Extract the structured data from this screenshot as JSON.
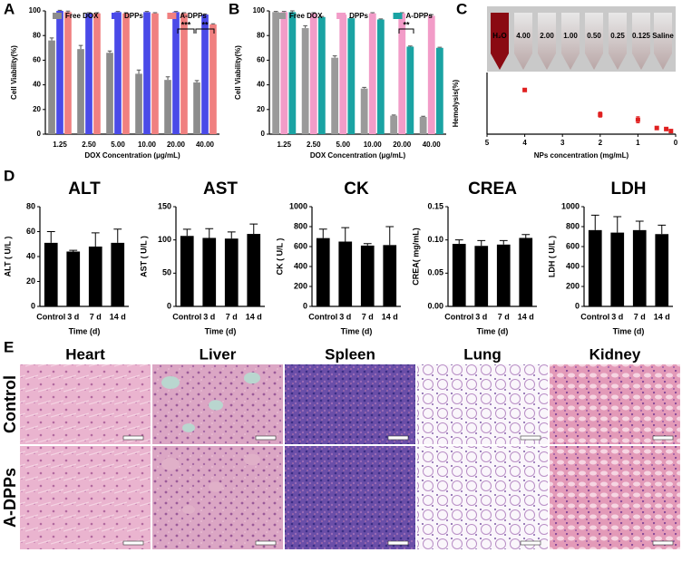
{
  "panel_labels": [
    "A",
    "B",
    "C",
    "D",
    "E"
  ],
  "chart_data": [
    {
      "type": "bar",
      "categories": [
        "1.25",
        "2.50",
        "5.00",
        "10.00",
        "20.00",
        "40.00"
      ],
      "xlabel": "DOX Concentration (μg/mL)",
      "ylabel": "Cell Viability(%)",
      "ylim": [
        0,
        100
      ],
      "yticks": [
        0,
        20,
        40,
        60,
        80,
        100
      ],
      "series": [
        {
          "name": "Free DOX",
          "color": "#8c8c8c",
          "values": [
            76,
            69,
            66,
            49,
            44,
            42
          ],
          "errors": [
            2,
            3,
            1.5,
            3,
            2.5,
            1.5
          ]
        },
        {
          "name": "DPPs",
          "color": "#4a4ae8",
          "values": [
            100,
            98,
            99,
            99,
            99,
            97
          ],
          "errors": [
            0.5,
            0.5,
            0.5,
            0.5,
            0.5,
            0.5
          ]
        },
        {
          "name": "A-DPPs",
          "color": "#f08080",
          "values": [
            99,
            98,
            98,
            98,
            98,
            89
          ],
          "errors": [
            0.8,
            0.5,
            0.5,
            0.5,
            0.5,
            0.5
          ]
        }
      ],
      "annotations": [
        "***",
        "**"
      ]
    },
    {
      "type": "bar",
      "categories": [
        "1.25",
        "2.50",
        "5.00",
        "10.00",
        "20.00",
        "40.00"
      ],
      "xlabel": "DOX Concentration (μg/mL)",
      "ylabel": "Cell Viability(%)",
      "ylim": [
        0,
        100
      ],
      "yticks": [
        0,
        20,
        40,
        60,
        80,
        100
      ],
      "series": [
        {
          "name": "Free DOX",
          "color": "#9a9a9a",
          "values": [
            99,
            86,
            62,
            37,
            15,
            14
          ],
          "errors": [
            0.5,
            2,
            1.5,
            1,
            0.5,
            0.5
          ]
        },
        {
          "name": "DPPs",
          "color": "#f29cc8",
          "values": [
            99,
            98,
            97,
            98,
            98,
            96
          ],
          "errors": [
            0.5,
            0.5,
            0.5,
            0.5,
            0.5,
            1
          ]
        },
        {
          "name": "A-DPPs",
          "color": "#1aa3a3",
          "values": [
            99,
            95,
            94,
            93,
            71,
            70
          ],
          "errors": [
            1,
            0.5,
            0.5,
            0.5,
            0.5,
            0.5
          ]
        }
      ],
      "annotations": [
        "**"
      ]
    },
    {
      "type": "scatter",
      "xlabel": "NPs concentration (mg/mL)",
      "ylabel": "Hemolysis(%)",
      "xlim": [
        5,
        0
      ],
      "xticks": [
        5,
        4,
        3,
        2,
        1,
        0
      ],
      "ylim": [
        0,
        6
      ],
      "color": "#e02020",
      "x": [
        4,
        2,
        1,
        0.5,
        0.25,
        0.125
      ],
      "y": [
        4.3,
        1.9,
        1.4,
        0.6,
        0.5,
        0.3
      ],
      "errors": [
        0.15,
        0.25,
        0.3,
        0.1,
        0.15,
        0.1
      ],
      "image_labels": [
        "H₂O",
        "4.00",
        "2.00",
        "1.00",
        "0.50",
        "0.25",
        "0.125",
        "Saline"
      ]
    },
    {
      "type": "bar",
      "title": "ALT",
      "categories": [
        "Control",
        "3 d",
        "7 d",
        "14 d"
      ],
      "xlabel": "Time (d)",
      "ylabel": "ALT ( U/L )",
      "color": "#000000",
      "ylim": [
        0,
        80
      ],
      "yticks": [
        0,
        20,
        40,
        60,
        80
      ],
      "values": [
        51,
        44,
        48,
        51
      ],
      "errors": [
        9,
        1,
        11,
        11
      ]
    },
    {
      "type": "bar",
      "title": "AST",
      "categories": [
        "Control",
        "3 d",
        "7 d",
        "14 d"
      ],
      "xlabel": "Time (d)",
      "ylabel": "AST ( U/L )",
      "color": "#000000",
      "ylim": [
        0,
        150
      ],
      "yticks": [
        0,
        50,
        100,
        150
      ],
      "values": [
        106,
        103,
        102,
        109
      ],
      "errors": [
        10,
        14,
        10,
        15
      ]
    },
    {
      "type": "bar",
      "title": "CK",
      "categories": [
        "Control",
        "3 d",
        "7 d",
        "14 d"
      ],
      "xlabel": "Time (d)",
      "ylabel": "CK ( U/L )",
      "color": "#000000",
      "ylim": [
        0,
        1000
      ],
      "yticks": [
        0,
        200,
        400,
        600,
        800,
        1000
      ],
      "values": [
        685,
        650,
        610,
        615
      ],
      "errors": [
        90,
        140,
        20,
        185
      ]
    },
    {
      "type": "bar",
      "title": "CREA",
      "categories": [
        "Control",
        "3 d",
        "7 d",
        "14 d"
      ],
      "xlabel": "Time (d)",
      "ylabel": "CREA( mg/mL)",
      "color": "#000000",
      "ylim": [
        0,
        0.15
      ],
      "yticks": [
        {
          "value": 0,
          "label": "0.00"
        },
        {
          "value": 0.05,
          "label": "0.05"
        },
        {
          "value": 0.1,
          "label": "0.10"
        },
        {
          "value": 0.15,
          "label": "0.15"
        }
      ],
      "values": [
        0.094,
        0.091,
        0.093,
        0.103
      ],
      "errors": [
        0.006,
        0.008,
        0.006,
        0.005
      ]
    },
    {
      "type": "bar",
      "title": "LDH",
      "categories": [
        "Control",
        "3 d",
        "7 d",
        "14 d"
      ],
      "xlabel": "Time (d)",
      "ylabel": "LDH ( U/L )",
      "color": "#000000",
      "ylim": [
        0,
        1000
      ],
      "yticks": [
        0,
        200,
        400,
        600,
        800,
        1000
      ],
      "values": [
        765,
        740,
        765,
        725
      ],
      "errors": [
        150,
        160,
        90,
        90
      ]
    }
  ],
  "histology": {
    "columns": [
      "Heart",
      "Liver",
      "Spleen",
      "Lung",
      "Kidney"
    ],
    "rows": [
      "Control",
      "A-DPPs"
    ]
  }
}
